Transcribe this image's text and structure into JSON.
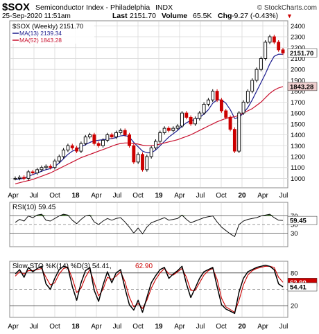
{
  "header": {
    "symbol": "$SOX",
    "name": "Semiconductor Index - Philadelphia",
    "exchange": "INDX",
    "brand": "© StockCharts.com",
    "date": "25-Sep-2020 11:51am",
    "last_label": "Last",
    "last_value": "2151.70",
    "volume_label": "Volume",
    "volume_value": "65.5K",
    "chg_label": "Chg",
    "chg_value": "-9.27 (-0.43%)",
    "chg_arrow": "▼"
  },
  "legend": {
    "price": "$SOX (Weekly) 2151.70",
    "ma13": "MA(13) 2139.34",
    "ma52": "MA(52) 1843.28",
    "rsi": "RSI(10) 59.45",
    "sto_a": "Slow STO %K(14) %D(3) 54.41,",
    "sto_b": "62.90"
  },
  "colors": {
    "ma13": "#1a1a8c",
    "ma52": "#c8102e",
    "up_candle": "#000000",
    "down_candle": "#cc0000",
    "rsi_fill": "#4f7f3f",
    "grid": "#d8d8d8"
  },
  "axis_labels": {
    "price": [
      "2400",
      "2300",
      "2200",
      "2100",
      "2000",
      "1900",
      "1800",
      "1700",
      "1600",
      "1500",
      "1400",
      "1300",
      "1200",
      "1100",
      "1000"
    ],
    "rsi": [
      "70",
      "50",
      "30"
    ],
    "sto": [
      "80",
      "20"
    ],
    "x": [
      "Apr",
      "Jul",
      "Oct",
      "18",
      "Apr",
      "Jul",
      "Oct",
      "19",
      "Apr",
      "Jul",
      "Oct",
      "20",
      "Apr",
      "Jul"
    ]
  },
  "badges": {
    "price_last": "2151.70",
    "ma52": "1843.28",
    "rsi": "59.45",
    "sto_d": "62.90",
    "sto_k": "54.41"
  },
  "chart_data": {
    "type": "line",
    "title": "$SOX Semiconductor Index - Philadelphia INDX",
    "x_ticks": [
      "Apr",
      "Jul",
      "Oct",
      "18",
      "Apr",
      "Jul",
      "Oct",
      "19",
      "Apr",
      "Jul",
      "Oct",
      "20",
      "Apr",
      "Jul"
    ],
    "price_panel": {
      "ylim": [
        920,
        2440
      ],
      "series": [
        {
          "name": "$SOX (Weekly)",
          "values": [
            1000,
            1010,
            1000,
            1060,
            1050,
            1080,
            1100,
            1110,
            1100,
            1160,
            1200,
            1260,
            1300,
            1280,
            1250,
            1320,
            1380,
            1400,
            1320,
            1300,
            1350,
            1400,
            1380,
            1420,
            1440,
            1400,
            1300,
            1150,
            1220,
            1080,
            1200,
            1280,
            1340,
            1420,
            1460,
            1440,
            1460,
            1480,
            1600,
            1560,
            1500,
            1550,
            1600,
            1680,
            1720,
            1800,
            1720,
            1620,
            1560,
            1450,
            1250,
            1600,
            1700,
            1800,
            1900,
            2000,
            2100,
            2250,
            2300,
            2250,
            2180,
            2151
          ]
        },
        {
          "name": "MA(13)",
          "values": [
            990,
            995,
            1000,
            1020,
            1035,
            1050,
            1065,
            1080,
            1090,
            1110,
            1140,
            1180,
            1220,
            1250,
            1265,
            1290,
            1310,
            1330,
            1345,
            1350,
            1355,
            1360,
            1365,
            1375,
            1390,
            1395,
            1380,
            1330,
            1290,
            1250,
            1235,
            1235,
            1260,
            1300,
            1340,
            1380,
            1410,
            1440,
            1480,
            1510,
            1530,
            1540,
            1560,
            1590,
            1630,
            1690,
            1720,
            1720,
            1690,
            1630,
            1550,
            1560,
            1600,
            1650,
            1720,
            1800,
            1880,
            1960,
            2050,
            2120,
            2140,
            2139
          ]
        },
        {
          "name": "MA(52)",
          "values": [
            950,
            960,
            970,
            980,
            990,
            1005,
            1020,
            1035,
            1050,
            1070,
            1090,
            1110,
            1130,
            1150,
            1170,
            1190,
            1205,
            1220,
            1235,
            1250,
            1265,
            1280,
            1295,
            1310,
            1320,
            1325,
            1325,
            1320,
            1315,
            1305,
            1300,
            1300,
            1305,
            1315,
            1325,
            1335,
            1345,
            1355,
            1370,
            1385,
            1400,
            1420,
            1440,
            1460,
            1480,
            1500,
            1520,
            1535,
            1550,
            1560,
            1565,
            1580,
            1600,
            1620,
            1640,
            1670,
            1700,
            1740,
            1780,
            1810,
            1830,
            1843
          ]
        }
      ]
    },
    "rsi_panel": {
      "ylim": [
        0,
        100
      ],
      "levels": [
        70,
        50,
        30
      ],
      "series": [
        {
          "name": "RSI(10)",
          "values": [
            55,
            62,
            58,
            70,
            66,
            72,
            74,
            60,
            58,
            64,
            70,
            74,
            72,
            60,
            52,
            62,
            70,
            72,
            56,
            50,
            58,
            64,
            60,
            64,
            66,
            56,
            44,
            30,
            42,
            28,
            44,
            54,
            58,
            62,
            66,
            60,
            62,
            64,
            72,
            62,
            54,
            58,
            62,
            66,
            68,
            70,
            56,
            44,
            36,
            28,
            22,
            50,
            58,
            62,
            64,
            66,
            70,
            72,
            74,
            66,
            60,
            59.45
          ]
        }
      ]
    },
    "sto_panel": {
      "ylim": [
        0,
        100
      ],
      "levels": [
        80,
        50,
        20
      ],
      "series": [
        {
          "name": "%K(14)",
          "values": [
            78,
            86,
            72,
            90,
            82,
            88,
            92,
            60,
            50,
            70,
            86,
            92,
            90,
            55,
            30,
            62,
            84,
            90,
            48,
            28,
            58,
            82,
            62,
            80,
            86,
            52,
            22,
            12,
            30,
            8,
            35,
            62,
            75,
            86,
            90,
            70,
            78,
            84,
            92,
            60,
            35,
            52,
            70,
            82,
            86,
            90,
            55,
            22,
            14,
            10,
            6,
            45,
            70,
            82,
            86,
            90,
            92,
            94,
            92,
            86,
            60,
            54.41
          ]
        },
        {
          "name": "%D(3)",
          "values": [
            74,
            82,
            78,
            84,
            84,
            86,
            88,
            72,
            58,
            62,
            78,
            88,
            90,
            70,
            44,
            52,
            72,
            86,
            62,
            38,
            50,
            72,
            68,
            74,
            82,
            64,
            36,
            18,
            24,
            15,
            30,
            52,
            68,
            80,
            88,
            78,
            76,
            82,
            88,
            72,
            48,
            48,
            62,
            76,
            84,
            88,
            68,
            34,
            18,
            13,
            8,
            30,
            58,
            76,
            84,
            88,
            90,
            92,
            92,
            90,
            72,
            62.9
          ]
        }
      ]
    }
  }
}
